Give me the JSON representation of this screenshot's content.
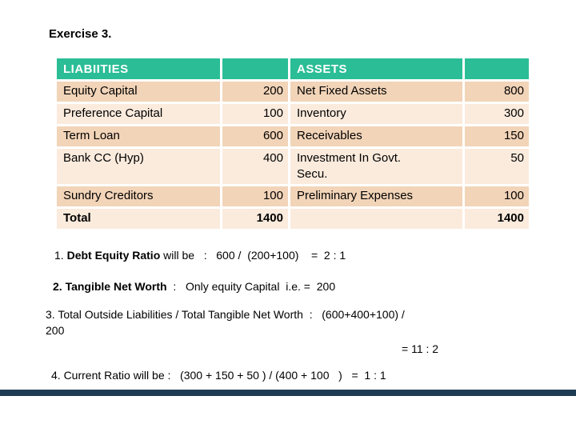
{
  "title": "Exercise 3.",
  "colors": {
    "header_bg": "#2BBD96",
    "row_dark": "#F2D4B8",
    "row_light": "#FBEBDD",
    "header_text": "#FFFFFF",
    "divider_bar": "#1E3B54"
  },
  "table": {
    "headers": {
      "liabilities": "LIABIITIES",
      "liabilities_value": "",
      "assets": "ASSETS",
      "assets_value": ""
    },
    "rows": [
      {
        "liability": "Equity Capital",
        "liability_value": "200",
        "asset": "Net Fixed Assets",
        "asset_value": "800"
      },
      {
        "liability": "Preference Capital",
        "liability_value": "100",
        "asset": "Inventory",
        "asset_value": "300"
      },
      {
        "liability": "Term Loan",
        "liability_value": "600",
        "asset": "Receivables",
        "asset_value": "150"
      },
      {
        "liability": "Bank CC (Hyp)",
        "liability_value": "400",
        "asset": "Investment In Govt. Secu.",
        "asset_value": "50"
      },
      {
        "liability": "Sundry Creditors",
        "liability_value": "100",
        "asset": "Preliminary Expenses",
        "asset_value": "100"
      }
    ],
    "total": {
      "label": "Total",
      "liability_value": "1400",
      "asset": "",
      "asset_value": "1400"
    }
  },
  "calculations": {
    "item1_number": "1. ",
    "item1_bold": "Debt Equity Ratio",
    "item1_rest": " will be   :   600 /  (200+100)    =  2 : 1",
    "item2_bold": "2. Tangible Net Worth",
    "item2_rest": "  :   Only equity Capital  i.e. =  200",
    "item3_line1": "3. Total Outside Liabilities / Total Tangible Net Worth  :   (600+400+100) /",
    "item3_line2": "200",
    "item3_result": "= 11 : 2",
    "item4": "4. Current Ratio will be :   (300 + 150 + 50 ) / (400 + 100   )   =  1 : 1"
  }
}
